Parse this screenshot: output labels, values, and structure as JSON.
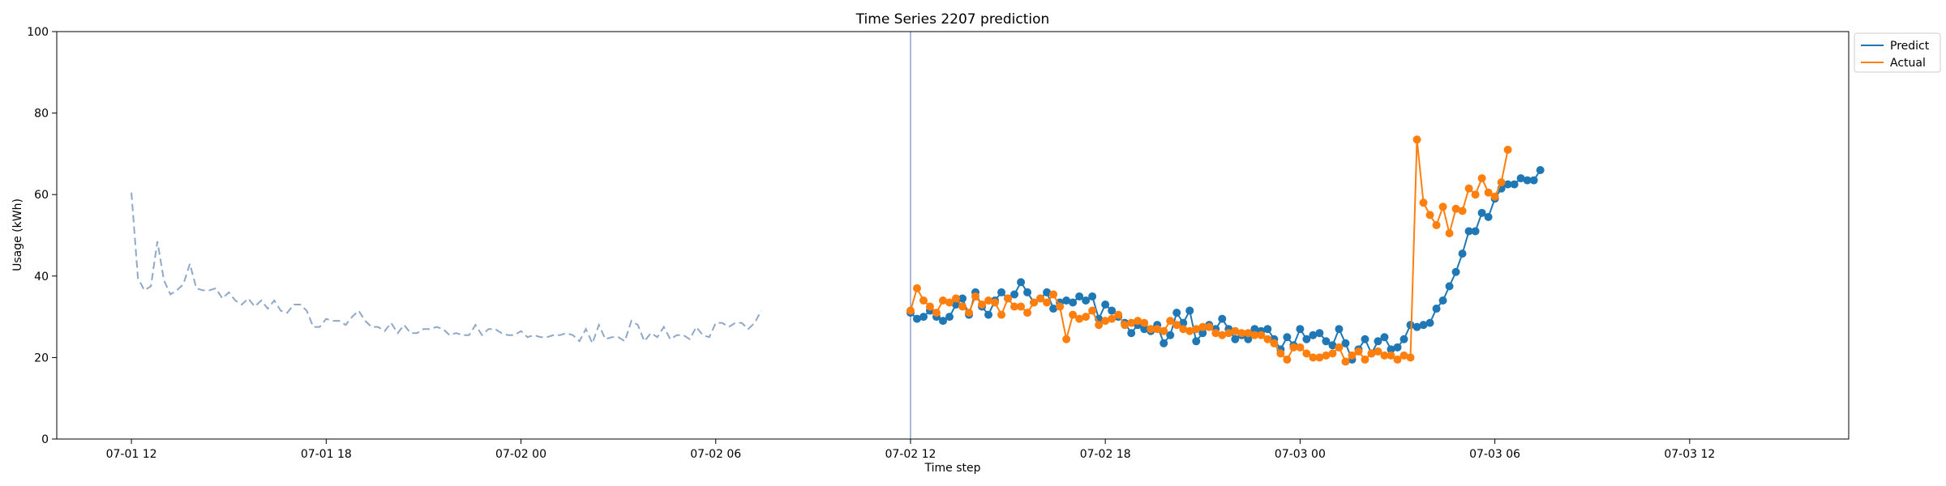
{
  "chart_data": {
    "type": "line",
    "title": "Time Series 2207 prediction",
    "xlabel": "Time step",
    "ylabel": "Usage (kWh)",
    "ylim": [
      0,
      100
    ],
    "yticks": [
      0,
      20,
      40,
      60,
      80,
      100
    ],
    "xlim": [
      -11.5,
      264.5
    ],
    "xticks": [
      {
        "label": "07-01 12",
        "t": 0
      },
      {
        "label": "07-01 18",
        "t": 30
      },
      {
        "label": "07-02 00",
        "t": 60
      },
      {
        "label": "07-02 06",
        "t": 90
      },
      {
        "label": "07-02 12",
        "t": 120
      },
      {
        "label": "07-02 18",
        "t": 150
      },
      {
        "label": "07-03 00",
        "t": 180
      },
      {
        "label": "07-03 06",
        "t": 210
      },
      {
        "label": "07-03 12",
        "t": 240
      }
    ],
    "time_step_minutes": 12,
    "grid": false,
    "legend_position": "upper-right-outside",
    "forecast_start_t": 120,
    "colors": {
      "history": "#8fa8c8",
      "predict": "#1f77b4",
      "actual": "#ff7f0e",
      "vline": "#7f96c8"
    },
    "history": {
      "name": "",
      "start_t": 0,
      "values": [
        60.5,
        39.5,
        36.5,
        37.5,
        48.5,
        39.0,
        35.5,
        36.5,
        38.0,
        43.0,
        37.0,
        36.5,
        36.5,
        37.0,
        34.5,
        36.0,
        34.0,
        33.0,
        34.5,
        32.5,
        34.0,
        32.0,
        34.0,
        31.5,
        31.0,
        33.0,
        33.0,
        31.5,
        27.5,
        27.5,
        29.5,
        29.0,
        29.0,
        28.0,
        30.0,
        31.5,
        29.0,
        27.5,
        27.5,
        26.5,
        28.5,
        26.0,
        28.0,
        26.0,
        26.0,
        27.0,
        27.0,
        27.5,
        27.0,
        25.5,
        26.0,
        25.5,
        25.5,
        28.0,
        25.5,
        27.0,
        27.0,
        26.0,
        25.5,
        25.5,
        26.5,
        25.0,
        25.5,
        25.0,
        25.0,
        25.5,
        25.5,
        26.0,
        25.5,
        24.0,
        27.0,
        23.5,
        28.0,
        24.5,
        25.0,
        25.0,
        24.0,
        29.0,
        28.0,
        24.0,
        26.0,
        25.0,
        27.5,
        24.5,
        25.5,
        25.5,
        24.5,
        27.5,
        25.5,
        25.0,
        28.5,
        28.5,
        27.5,
        28.5,
        28.5,
        27.0,
        28.5,
        31.5
      ]
    },
    "series": [
      {
        "name": "Predict",
        "start_t": 120,
        "values": [
          31.0,
          29.5,
          30.0,
          31.5,
          30.0,
          29.0,
          30.0,
          33.0,
          34.5,
          30.5,
          36.0,
          32.5,
          30.5,
          34.0,
          36.0,
          34.5,
          35.5,
          38.5,
          36.0,
          33.5,
          34.5,
          36.0,
          32.0,
          33.5,
          34.0,
          33.5,
          35.0,
          34.0,
          35.0,
          29.5,
          33.0,
          31.5,
          30.0,
          28.5,
          26.0,
          28.0,
          27.0,
          26.5,
          28.0,
          23.5,
          25.5,
          31.0,
          28.5,
          31.5,
          24.0,
          26.0,
          28.0,
          27.0,
          29.5,
          27.0,
          24.5,
          25.5,
          24.5,
          27.0,
          26.5,
          27.0,
          24.5,
          22.0,
          25.0,
          23.0,
          27.0,
          24.5,
          25.5,
          26.0,
          24.0,
          23.0,
          27.0,
          23.5,
          19.5,
          22.0,
          24.5,
          21.0,
          24.0,
          25.0,
          22.0,
          22.5,
          24.5,
          28.0,
          27.5,
          28.0,
          28.5,
          32.0,
          34.0,
          37.5,
          41.0,
          45.5,
          51.0,
          51.0,
          55.5,
          54.5,
          59.0,
          61.5,
          62.5,
          62.5,
          64.0,
          63.5,
          63.5,
          66.0
        ]
      },
      {
        "name": "Actual",
        "start_t": 120,
        "values": [
          31.5,
          37.0,
          34.0,
          32.5,
          31.0,
          34.0,
          33.5,
          34.5,
          32.5,
          31.0,
          35.0,
          33.0,
          34.0,
          33.5,
          30.5,
          34.5,
          32.5,
          32.5,
          31.0,
          33.5,
          34.5,
          33.5,
          35.5,
          32.5,
          24.5,
          30.5,
          29.5,
          30.0,
          31.5,
          28.0,
          29.0,
          29.5,
          30.5,
          28.0,
          28.5,
          29.0,
          28.5,
          27.0,
          27.0,
          26.5,
          29.0,
          28.0,
          27.0,
          26.5,
          27.0,
          27.5,
          27.5,
          26.0,
          25.5,
          26.0,
          26.5,
          26.0,
          26.0,
          25.5,
          25.5,
          24.5,
          23.5,
          21.0,
          19.5,
          22.5,
          22.5,
          21.0,
          20.0,
          20.0,
          20.5,
          21.0,
          22.5,
          19.0,
          20.5,
          21.5,
          19.5,
          21.0,
          21.5,
          20.5,
          20.5,
          19.5,
          20.5,
          20.0,
          73.5,
          58.0,
          55.0,
          52.5,
          57.0,
          50.5,
          56.5,
          56.0,
          61.5,
          60.0,
          64.0,
          60.5,
          59.5,
          63.0,
          71.0
        ]
      }
    ]
  }
}
